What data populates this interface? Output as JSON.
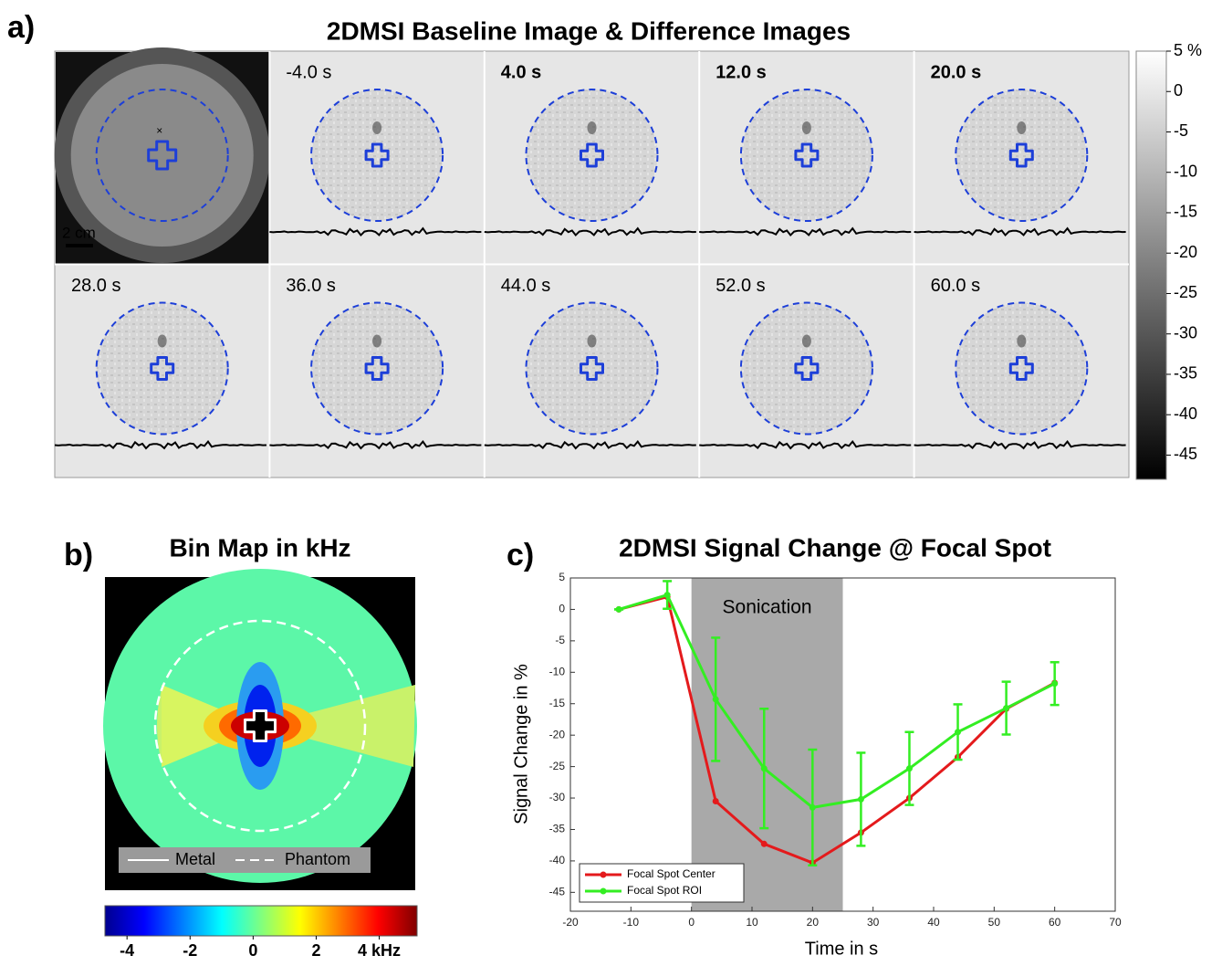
{
  "panel_a": {
    "label": "a)",
    "title": "2DMSI Baseline Image & Difference Images",
    "scale_bar": "2 cm",
    "frames": [
      {
        "label": "-4.0 s",
        "color": "#222222"
      },
      {
        "label": "4.0 s",
        "color": "#3aaa35"
      },
      {
        "label": "12.0 s",
        "color": "#3aaa35"
      },
      {
        "label": "20.0 s",
        "color": "#3aaa35"
      },
      {
        "label": "28.0 s",
        "color": "#222222"
      },
      {
        "label": "36.0 s",
        "color": "#222222"
      },
      {
        "label": "44.0 s",
        "color": "#222222"
      },
      {
        "label": "52.0 s",
        "color": "#222222"
      },
      {
        "label": "60.0 s",
        "color": "#222222"
      }
    ],
    "colorbar": {
      "lim": [
        -48,
        5
      ],
      "ticks": [
        {
          "value": 5,
          "label": "5 %"
        },
        0,
        -5,
        -10,
        -15,
        -20,
        -25,
        -30,
        -35,
        -40,
        -45
      ]
    }
  },
  "panel_b": {
    "label": "b)",
    "title": "Bin Map in kHz",
    "legend": [
      "Metal",
      "Phantom"
    ],
    "colorbar": {
      "lim": [
        -4.7,
        5.2
      ],
      "ticks": [
        -4,
        -2,
        0,
        2,
        {
          "value": 4,
          "label": "4 kHz"
        }
      ]
    }
  },
  "chart_data": {
    "type": "line",
    "label": "c)",
    "title": "2DMSI Signal Change @ Focal Spot",
    "x_label": "Time in s",
    "y_label": "Signal Change in %",
    "xlim": [
      -20,
      70
    ],
    "xticks": [
      -20,
      -10,
      0,
      10,
      20,
      30,
      40,
      50,
      60,
      70
    ],
    "ylim": [
      -48,
      5
    ],
    "yticks": [
      5,
      0,
      -5,
      -10,
      -15,
      -20,
      -25,
      -30,
      -35,
      -40,
      -45
    ],
    "shaded": {
      "x": [
        0,
        25
      ],
      "label": "Sonication",
      "color": "#a9a9a9"
    },
    "legend_position": "lower left",
    "x": [
      -12,
      -4,
      4,
      12,
      20,
      28,
      36,
      44,
      52,
      60
    ],
    "series": [
      {
        "name": "Focal Spot Center",
        "color": "#e41a1c",
        "values": [
          0,
          2,
          -30.5,
          -37.3,
          -40.3,
          -35.5,
          -30,
          -23.5,
          -15.8,
          -11.7
        ]
      },
      {
        "name": "Focal Spot ROI",
        "color": "#33ee22",
        "values": [
          0,
          2.3,
          -14.3,
          -25.3,
          -31.5,
          -30.2,
          -25.3,
          -19.5,
          -15.7,
          -11.8
        ],
        "errors": [
          0,
          2.2,
          9.8,
          9.5,
          9.2,
          7.4,
          5.8,
          4.4,
          4.2,
          3.4
        ]
      }
    ]
  }
}
